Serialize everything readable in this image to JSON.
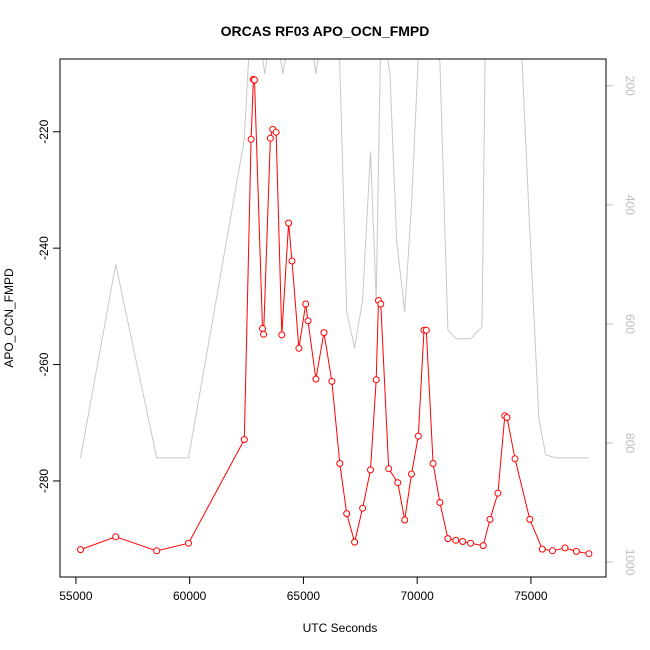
{
  "chart_data": {
    "type": "line",
    "title": "ORCAS RF03 APO_OCN_FMPD",
    "xlabel": "UTC Seconds",
    "ylabel": "APO_OCN_FMPD",
    "xlim": [
      54300,
      78300
    ],
    "ylim": [
      -296.5,
      -207.5
    ],
    "x_ticks": [
      55000,
      60000,
      65000,
      70000,
      75000
    ],
    "x_tick_labels": [
      "55000",
      "60000",
      "65000",
      "70000",
      "75000"
    ],
    "y_ticks": [
      -220,
      -240,
      -260,
      -280
    ],
    "y_tick_labels": [
      "-220",
      "-240",
      "-260",
      "-280"
    ],
    "y2_range": [
      155,
      1025
    ],
    "y2_ticks": [
      200,
      400,
      600,
      800,
      1000
    ],
    "y2_tick_labels": [
      "200",
      "400",
      "600",
      "800",
      "1000"
    ],
    "grid": false,
    "colors": {
      "primary": "#ff0000",
      "secondary": "#c8c8c8"
    },
    "series": [
      {
        "axis": "left",
        "color": "#ff0000",
        "marker": "open-circle",
        "x": [
          55200,
          56750,
          58550,
          59950,
          62400,
          62700,
          62800,
          62850,
          63200,
          63250,
          63550,
          63650,
          63800,
          64050,
          64350,
          64500,
          64800,
          65100,
          65200,
          65550,
          65900,
          66250,
          66600,
          66900,
          67250,
          67600,
          67950,
          68200,
          68300,
          68400,
          68750,
          69150,
          69450,
          69750,
          70050,
          70300,
          70400,
          70700,
          71000,
          71350,
          71700,
          72000,
          72350,
          72900,
          73200,
          73550,
          73850,
          73950,
          74300,
          74950,
          75500,
          75950,
          76500,
          77000,
          77550
        ],
        "y": [
          -291.8,
          -289.6,
          -292.0,
          -290.7,
          -272.9,
          -221.3,
          -211.0,
          -211.1,
          -253.8,
          -254.8,
          -221.1,
          -219.6,
          -220.1,
          -254.9,
          -235.7,
          -242.2,
          -257.2,
          -249.6,
          -252.5,
          -262.5,
          -254.5,
          -262.9,
          -277.0,
          -285.6,
          -290.5,
          -284.7,
          -278.1,
          -262.6,
          -249.0,
          -249.6,
          -277.9,
          -280.3,
          -286.7,
          -278.8,
          -272.3,
          -254.1,
          -254.1,
          -277.0,
          -283.7,
          -289.9,
          -290.2,
          -290.4,
          -290.7,
          -291.1,
          -286.6,
          -282.1,
          -268.8,
          -269.1,
          -276.2,
          -286.6,
          -291.7,
          -292.0,
          -291.5,
          -292.1,
          -292.5
        ]
      },
      {
        "axis": "right",
        "color": "#c8c8c8",
        "marker": "none",
        "x": [
          55200,
          56750,
          58550,
          59950,
          62400,
          62650,
          62800,
          63000,
          63300,
          63600,
          63800,
          64100,
          64450,
          64650,
          64850,
          65050,
          65250,
          65550,
          65800,
          66000,
          66150,
          66350,
          66550,
          66900,
          67250,
          67600,
          67950,
          68200,
          68400,
          68500,
          68800,
          69100,
          69450,
          69750,
          70100,
          70350,
          70450,
          70700,
          71000,
          71350,
          71700,
          72000,
          72350,
          72850,
          73000,
          73350,
          73650,
          73950,
          74300,
          74550,
          74900,
          75350,
          75650,
          76100,
          76600,
          77000,
          77550
        ],
        "y": [
          825,
          500,
          825,
          825,
          290,
          110,
          120,
          100,
          180,
          100,
          110,
          180,
          100,
          110,
          100,
          110,
          100,
          180,
          100,
          100,
          110,
          100,
          100,
          580,
          640,
          560,
          310,
          560,
          110,
          100,
          180,
          460,
          580,
          400,
          110,
          100,
          100,
          110,
          160,
          610,
          625,
          625,
          625,
          605,
          110,
          110,
          100,
          100,
          110,
          110,
          400,
          760,
          820,
          825,
          825,
          825,
          825
        ]
      }
    ]
  }
}
